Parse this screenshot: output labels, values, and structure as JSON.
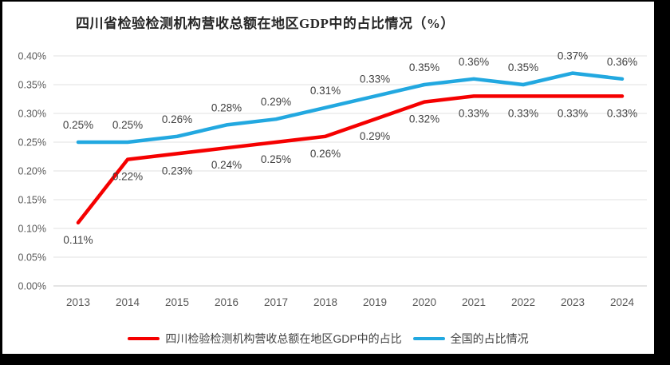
{
  "title": "四川省检验检测机构营收总额在地区GDP中的占比情况（%）",
  "colors": {
    "sichuan_line": "#F50000",
    "national_line": "#22A8E0",
    "data_label": "#3F3F3F",
    "tick_label": "#595959",
    "gridline": "#E2E2E2",
    "axis_line": "#C8C8C8",
    "title_text": "#262626",
    "frame": "#000000",
    "background": "#FFFFFF"
  },
  "chart_data": {
    "type": "line",
    "title": "四川省检验检测机构营收总额在地区GDP中的占比情况（%）",
    "categories": [
      "2013",
      "2014",
      "2015",
      "2016",
      "2017",
      "2018",
      "2019",
      "2020",
      "2021",
      "2022",
      "2023",
      "2024"
    ],
    "series": [
      {
        "name": "四川检验检测机构营收总额在地区GDP中的占比",
        "color_key": "sichuan_line",
        "values": [
          0.11,
          0.22,
          0.23,
          0.24,
          0.25,
          0.26,
          0.29,
          0.32,
          0.33,
          0.33,
          0.33,
          0.33
        ],
        "labels": [
          "0.11%",
          "0.22%",
          "0.23%",
          "0.24%",
          "0.25%",
          "0.26%",
          "0.29%",
          "0.32%",
          "0.33%",
          "0.33%",
          "0.33%",
          "0.33%"
        ],
        "label_position": "below"
      },
      {
        "name": "全国的占比情况",
        "color_key": "national_line",
        "values": [
          0.25,
          0.25,
          0.26,
          0.28,
          0.29,
          0.31,
          0.33,
          0.35,
          0.36,
          0.35,
          0.37,
          0.36
        ],
        "labels": [
          "0.25%",
          "0.25%",
          "0.26%",
          "0.28%",
          "0.29%",
          "0.31%",
          "0.33%",
          "0.35%",
          "0.36%",
          "0.35%",
          "0.37%",
          "0.36%"
        ],
        "label_position": "above"
      }
    ],
    "xlabel": "",
    "ylabel": "",
    "ylim": [
      0,
      0.4
    ],
    "ytick_step": 0.05,
    "ytick_labels": [
      "0.00%",
      "0.05%",
      "0.10%",
      "0.15%",
      "0.20%",
      "0.25%",
      "0.30%",
      "0.35%",
      "0.40%"
    ],
    "grid": true,
    "legend_position": "bottom"
  }
}
